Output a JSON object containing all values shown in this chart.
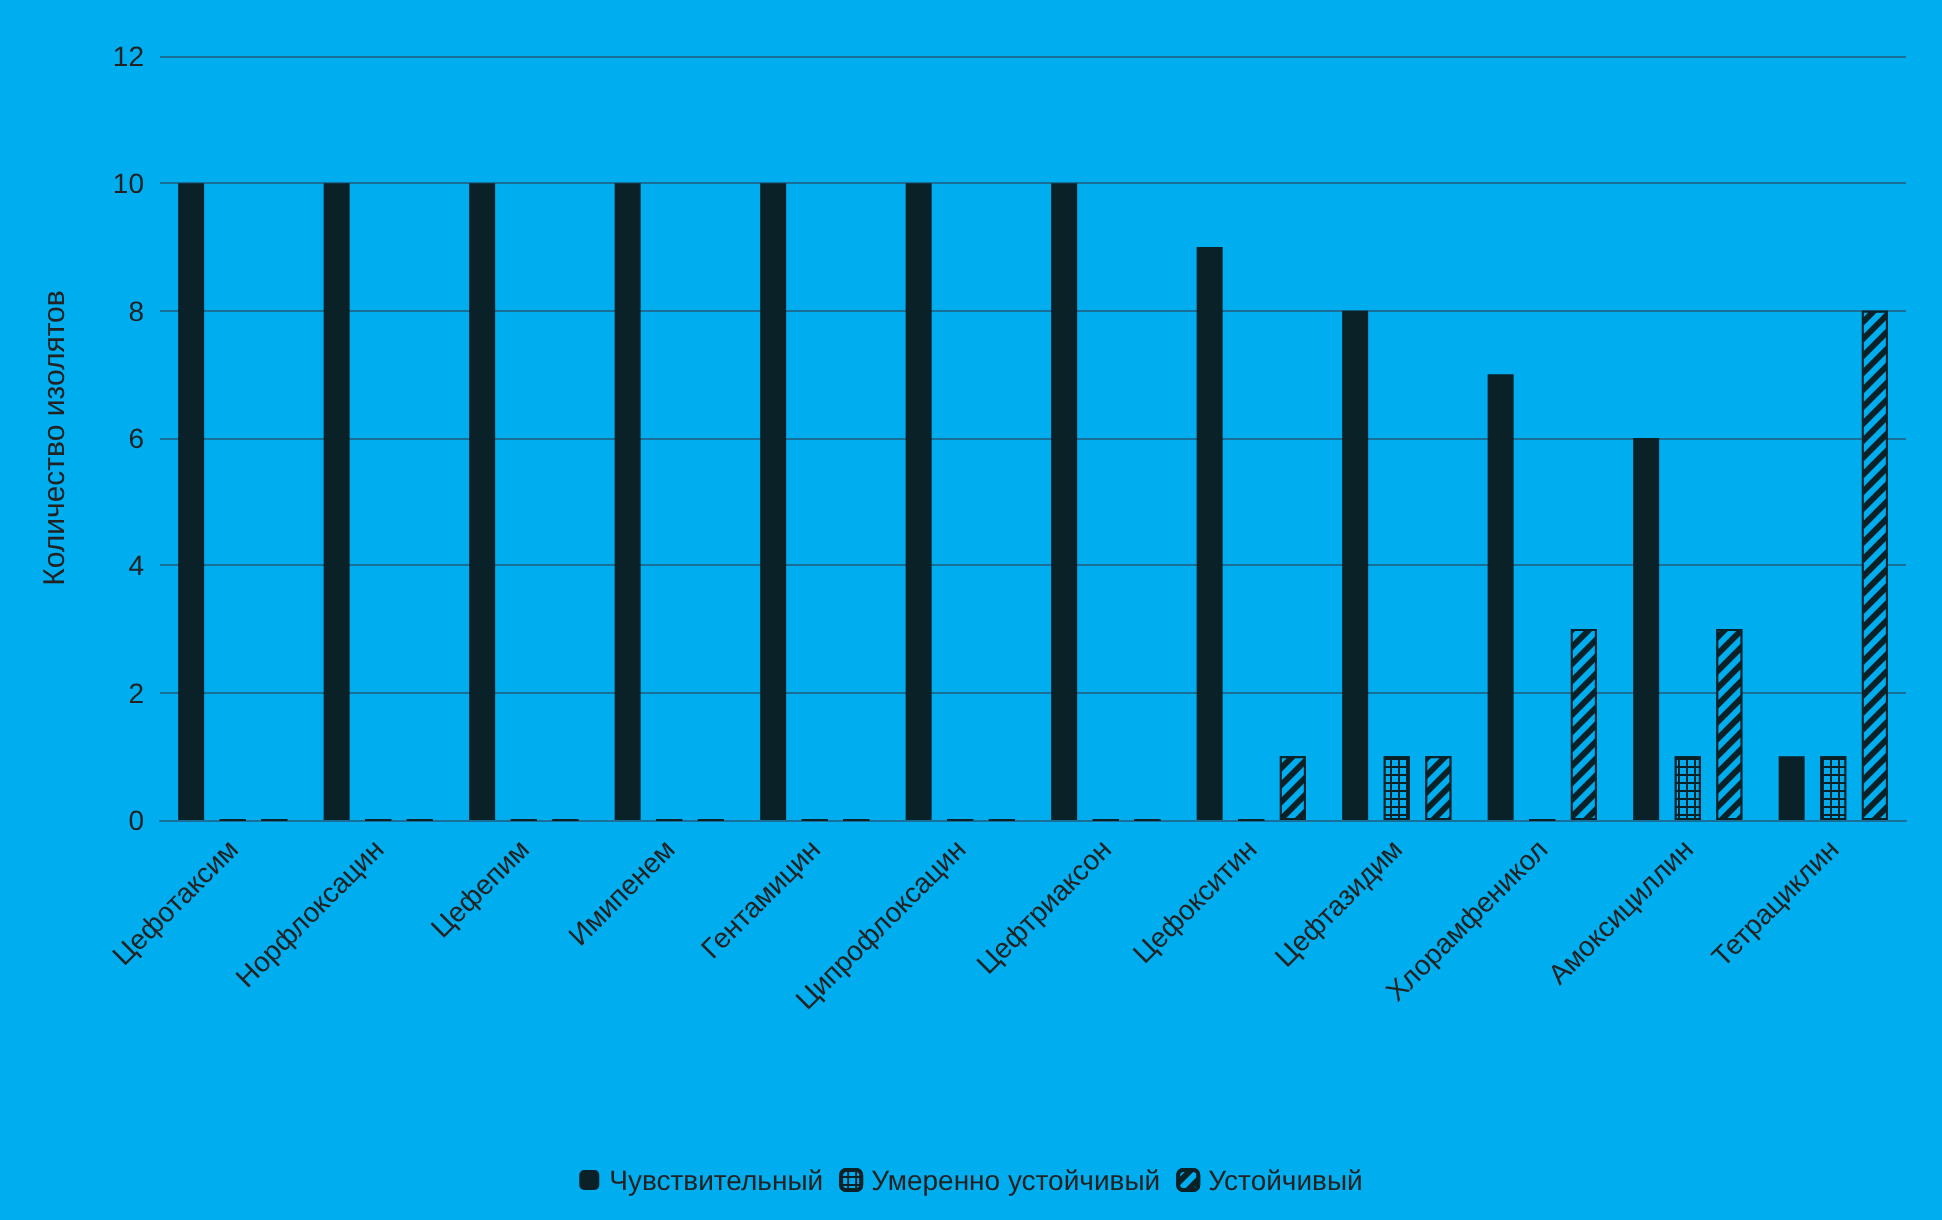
{
  "chart_data": {
    "type": "bar",
    "ylabel": "Количество изолятов",
    "categories": [
      "Цефотаксим",
      "Норфлоксацин",
      "Цефепим",
      "Имипенем",
      "Гентамицин",
      "Ципрофлоксацин",
      "Цефтриаксон",
      "Цефокситин",
      "Цефтазидим",
      "Хлорамфеникол",
      "Амоксициллин",
      "Тетрациклин"
    ],
    "series": [
      {
        "name": "Чувствительный",
        "color": "#0b2128",
        "values": [
          10,
          10,
          10,
          10,
          10,
          10,
          10,
          9,
          8,
          7,
          6,
          1
        ]
      },
      {
        "name": "Умеренно устойчивый",
        "color": "#0b2128",
        "values": [
          0,
          0,
          0,
          0,
          0,
          0,
          0,
          0,
          1,
          0,
          1,
          1
        ]
      },
      {
        "name": "Устойчивый",
        "color": "#0b2128",
        "values": [
          0,
          0,
          0,
          0,
          0,
          0,
          0,
          1,
          1,
          3,
          3,
          8
        ]
      }
    ],
    "ylim": [
      0,
      12
    ],
    "yticks": [
      0,
      2,
      4,
      6,
      8,
      10,
      12
    ],
    "grid": "y",
    "legend": "bottom"
  }
}
